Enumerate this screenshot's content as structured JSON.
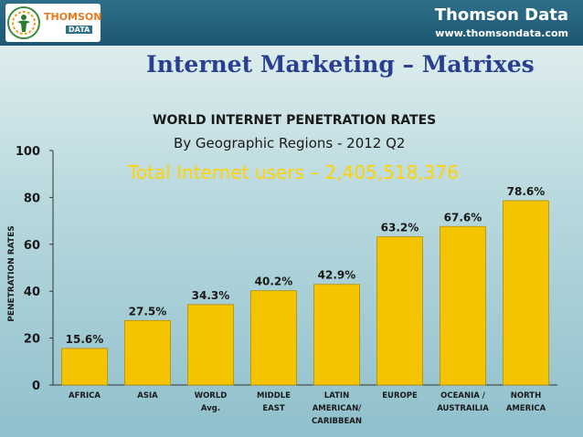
{
  "header": {
    "logo_text": "THOMSON",
    "logo_subtext": "DATA",
    "brand_name": "Thomson Data",
    "brand_url": "www.thomsondata.com"
  },
  "page_title": "Internet Marketing – Matrixes",
  "colors": {
    "bar": "#f5c400",
    "bar_stroke": "#b38f00",
    "title": "#2a3f8f",
    "highlight": "#ffd200",
    "header": "#1d5673"
  },
  "chart_data": {
    "type": "bar",
    "title": "WORLD INTERNET PENETRATION RATES",
    "subtitle": "By Geographic Regions - 2012 Q2",
    "annotation": "Total Internet users – 2,405,518,376",
    "ylabel": "PENETRATION RATES",
    "xlabel": "",
    "ylim": [
      0,
      100
    ],
    "yticks": [
      0,
      20,
      40,
      60,
      80,
      100
    ],
    "categories": [
      [
        "AFRICA"
      ],
      [
        "ASIA"
      ],
      [
        "WORLD",
        "Avg."
      ],
      [
        "MIDDLE",
        "EAST"
      ],
      [
        "LATIN",
        "AMERICAN/",
        "CARIBBEAN"
      ],
      [
        "EUROPE"
      ],
      [
        "OCEANIA /",
        "AUSTRAILIA"
      ],
      [
        "NORTH",
        "AMERICA"
      ]
    ],
    "values": [
      15.6,
      27.5,
      34.3,
      40.2,
      42.9,
      63.2,
      67.6,
      78.6
    ],
    "data_labels": [
      "15.6%",
      "27.5%",
      "34.3%",
      "40.2%",
      "42.9%",
      "63.2%",
      "67.6%",
      "78.6%"
    ],
    "grid": false
  }
}
